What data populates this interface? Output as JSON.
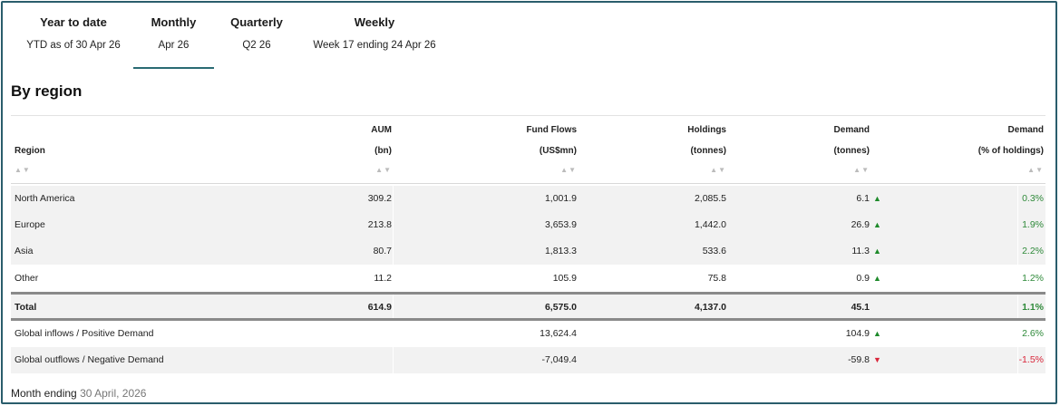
{
  "tabs": [
    {
      "label": "Year to date",
      "sub": "YTD as of 30 Apr 26"
    },
    {
      "label": "Monthly",
      "sub": "Apr 26"
    },
    {
      "label": "Quarterly",
      "sub": "Q2 26"
    },
    {
      "label": "Weekly",
      "sub": "Week 17 ending 24 Apr 26"
    }
  ],
  "active_tab": "Monthly",
  "heading": "By region",
  "columns": {
    "region": {
      "l1": "",
      "l2": "Region"
    },
    "aum": {
      "l1": "AUM",
      "l2": "(bn)"
    },
    "flows": {
      "l1": "Fund Flows",
      "l2": "(US$mn)"
    },
    "holdings": {
      "l1": "Holdings",
      "l2": "(tonnes)"
    },
    "demand": {
      "l1": "Demand",
      "l2": "(tonnes)"
    },
    "demand_pct": {
      "l1": "Demand",
      "l2": "(% of holdings)"
    }
  },
  "sort_glyph": "▲▼",
  "rows": [
    {
      "region": "North America",
      "aum": "309.2",
      "flows": "1,001.9",
      "holdings": "2,085.5",
      "demand": "6.1",
      "arrow": "▲",
      "pct": "0.3%"
    },
    {
      "region": "Europe",
      "aum": "213.8",
      "flows": "3,653.9",
      "holdings": "1,442.0",
      "demand": "26.9",
      "arrow": "▲",
      "pct": "1.9%"
    },
    {
      "region": "Asia",
      "aum": "80.7",
      "flows": "1,813.3",
      "holdings": "533.6",
      "demand": "11.3",
      "arrow": "▲",
      "pct": "2.2%"
    },
    {
      "region": "Other",
      "aum": "11.2",
      "flows": "105.9",
      "holdings": "75.8",
      "demand": "0.9",
      "arrow": "▲",
      "pct": "1.2%"
    }
  ],
  "total": {
    "region": "Total",
    "aum": "614.9",
    "flows": "6,575.0",
    "holdings": "4,137.0",
    "demand": "45.1",
    "pct": "1.1%"
  },
  "global": [
    {
      "region": "Global inflows / Positive Demand",
      "flows": "13,624.4",
      "demand": "104.9",
      "arrow": "▲",
      "pct": "2.6%"
    },
    {
      "region": "Global outflows / Negative Demand",
      "flows": "-7,049.4",
      "demand": "-59.8",
      "arrow": "▼",
      "pct": "-1.5%"
    }
  ],
  "footer": {
    "prefix": "Month ending",
    "date": "30 April, 2026"
  },
  "colors": {
    "frame": "#2a5d6c",
    "positive": "#2f8a3a",
    "negative": "#d9263a",
    "tab_underline": "#2a6b73"
  }
}
